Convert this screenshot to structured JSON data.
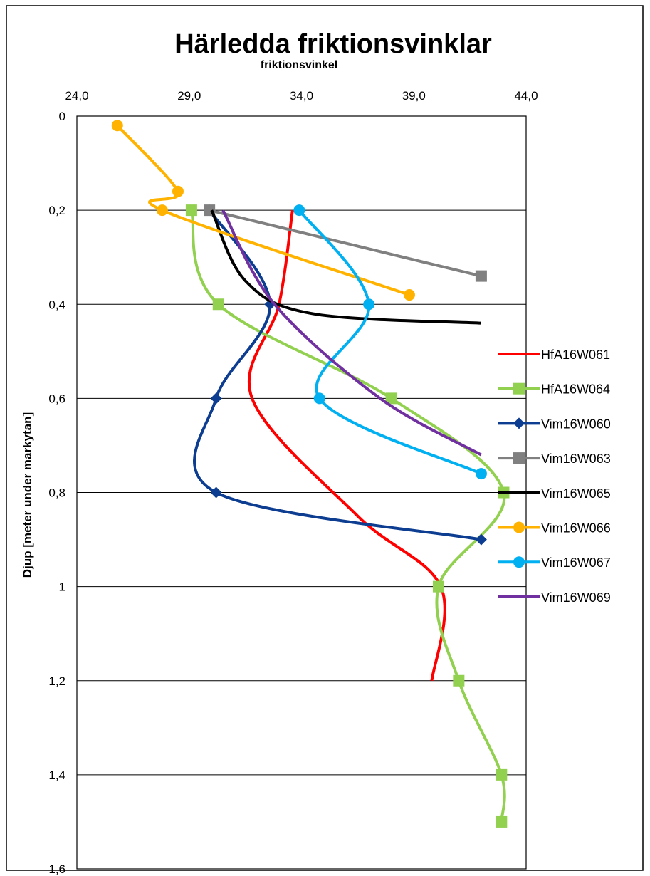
{
  "chart_data": {
    "type": "line",
    "title": "Härledda friktionsvinklar",
    "xlabel": "friktionsvinkel",
    "ylabel": "Djup [meter under markytan]",
    "xlim": [
      24,
      44
    ],
    "ylim": [
      0,
      1.6
    ],
    "y_inverted": true,
    "x_axis_position": "top",
    "x_ticks": [
      "24,0",
      "29,0",
      "34,0",
      "39,0",
      "44,0"
    ],
    "y_ticks": [
      "0",
      "0,2",
      "0,4",
      "0,6",
      "0,8",
      "1",
      "1,2",
      "1,4",
      "1,6"
    ],
    "grid": "horizontal",
    "legend_position": "right",
    "series": [
      {
        "name": "HfA16W061",
        "color": "#ff0000",
        "marker": "none",
        "points": [
          [
            33.6,
            0.2
          ],
          [
            33.0,
            0.4
          ],
          [
            31.8,
            0.6
          ],
          [
            36.5,
            0.85
          ],
          [
            40.2,
            1.0
          ],
          [
            39.8,
            1.2
          ]
        ]
      },
      {
        "name": "HfA16W064",
        "color": "#92d050",
        "marker": "square",
        "points": [
          [
            29.1,
            0.2
          ],
          [
            30.3,
            0.4
          ],
          [
            38.0,
            0.6
          ],
          [
            43.0,
            0.8
          ],
          [
            40.1,
            1.0
          ],
          [
            41.0,
            1.2
          ],
          [
            42.9,
            1.4
          ],
          [
            42.9,
            1.5
          ]
        ]
      },
      {
        "name": "Vim16W060",
        "color": "#0d3d91",
        "marker": "diamond",
        "points": [
          [
            29.9,
            0.2
          ],
          [
            32.6,
            0.4
          ],
          [
            30.2,
            0.6
          ],
          [
            30.2,
            0.8
          ],
          [
            42.0,
            0.9
          ]
        ]
      },
      {
        "name": "Vim16W063",
        "color": "#808080",
        "marker": "square",
        "points": [
          [
            29.9,
            0.2
          ],
          [
            42.0,
            0.34
          ]
        ]
      },
      {
        "name": "Vim16W065",
        "color": "#000000",
        "marker": "none",
        "points": [
          [
            30.0,
            0.2
          ],
          [
            31.5,
            0.35
          ],
          [
            34.5,
            0.42
          ],
          [
            42.0,
            0.44
          ]
        ]
      },
      {
        "name": "Vim16W066",
        "color": "#ffb300",
        "marker": "circle",
        "points": [
          [
            25.8,
            0.02
          ],
          [
            28.5,
            0.16
          ],
          [
            27.8,
            0.2
          ],
          [
            38.8,
            0.38
          ]
        ]
      },
      {
        "name": "Vim16W067",
        "color": "#00b0f0",
        "marker": "circle",
        "points": [
          [
            33.9,
            0.2
          ],
          [
            37.0,
            0.4
          ],
          [
            34.8,
            0.6
          ],
          [
            42.0,
            0.76
          ]
        ]
      },
      {
        "name": "Vim16W069",
        "color": "#7030a0",
        "marker": "none",
        "points": [
          [
            30.5,
            0.2
          ],
          [
            32.8,
            0.4
          ],
          [
            37.5,
            0.6
          ],
          [
            42.0,
            0.72
          ]
        ]
      }
    ]
  }
}
